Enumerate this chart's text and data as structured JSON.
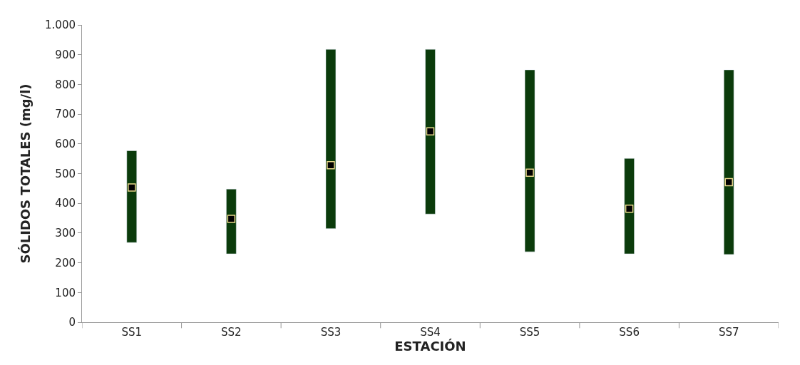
{
  "chart_data": {
    "type": "bar",
    "xlabel": "ESTACIÓN",
    "ylabel": "SÓLIDOS TOTALES (mg/l)",
    "categories": [
      "SS1",
      "SS2",
      "SS3",
      "SS4",
      "SS5",
      "SS6",
      "SS7"
    ],
    "series": [
      {
        "color": "#0b3b0b",
        "base": [
          268,
          230,
          315,
          364,
          237,
          230,
          228
        ],
        "values": [
          309,
          218,
          603,
          554,
          612,
          321,
          621
        ]
      },
      {
        "type": "scatter",
        "marker": "square",
        "color": "#000000",
        "x": [
          "SS1",
          "SS2",
          "SS3",
          "SS4",
          "SS5",
          "SS6",
          "SS7"
        ],
        "values": [
          453,
          348,
          528,
          642,
          503,
          382,
          471
        ]
      }
    ],
    "ylim": [
      0,
      1000
    ],
    "yticks": [
      0,
      100,
      200,
      300,
      400,
      500,
      600,
      700,
      800,
      900,
      {
        "value": 1000,
        "label": "1.000"
      }
    ],
    "tick_labels": "xy"
  }
}
